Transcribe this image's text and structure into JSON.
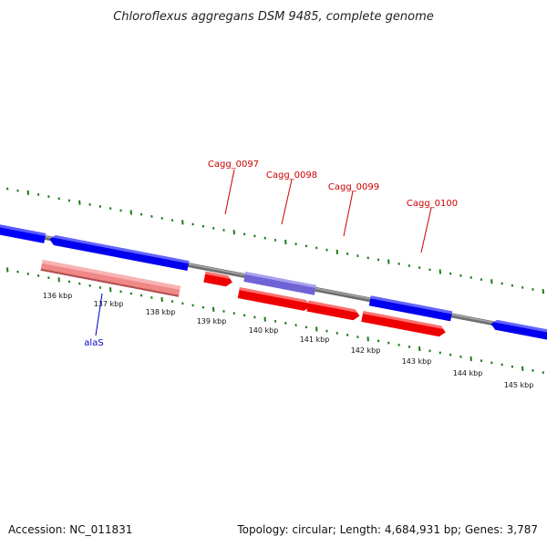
{
  "title": "Chloroflexus aggregans DSM 9485, complete genome",
  "footer": {
    "accession": "Accession: NC_011831",
    "summary": "Topology: circular; Length: 4,684,931 bp; Genes: 3,787"
  },
  "colors": {
    "backbone": "#7a7a7a",
    "tick": "#1a7a1a",
    "cds_forward": "#ff0000",
    "cds_reverse": "#0000ff",
    "rna": "#7a70d8",
    "gene": "#f08080",
    "label_red": "#cc0000",
    "label_blue": "#0000cc"
  },
  "scale_labels": [
    "136 kbp",
    "137 kbp",
    "138 kbp",
    "139 kbp",
    "140 kbp",
    "141 kbp",
    "142 kbp",
    "143 kbp",
    "144 kbp",
    "145 kbp"
  ],
  "gene_labels": [
    {
      "text": "Cagg_0097",
      "color": "#cc0000"
    },
    {
      "text": "Cagg_0098",
      "color": "#cc0000"
    },
    {
      "text": "Cagg_0099",
      "color": "#cc0000"
    },
    {
      "text": "Cagg_0100",
      "color": "#cc0000"
    },
    {
      "text": "alaS",
      "color": "#0000cc"
    }
  ]
}
